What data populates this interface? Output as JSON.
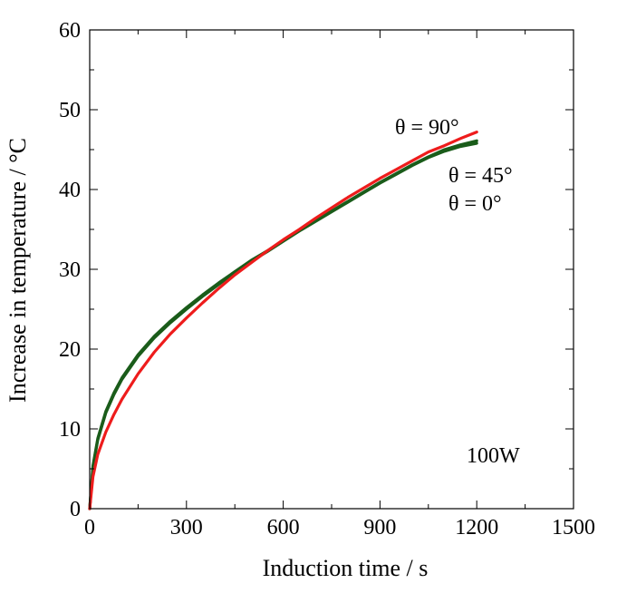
{
  "chart_data": {
    "type": "line",
    "title": "",
    "xlabel": "Induction time / s",
    "ylabel": "Increase in temperature / °C",
    "xlim": [
      0,
      1500
    ],
    "ylim": [
      0,
      60
    ],
    "x_ticks": [
      0,
      300,
      600,
      900,
      1200,
      1500
    ],
    "y_ticks": [
      0,
      10,
      20,
      30,
      40,
      50,
      60
    ],
    "x_tick_labels": [
      "0",
      "300",
      "600",
      "900",
      "1200",
      "1500"
    ],
    "y_tick_labels": [
      "0",
      "10",
      "20",
      "30",
      "40",
      "50",
      "60"
    ],
    "grid": false,
    "series": [
      {
        "name": "θ = 0°",
        "color": "#1a5c1a",
        "x": [
          0,
          10,
          25,
          50,
          75,
          100,
          150,
          200,
          250,
          300,
          350,
          400,
          450,
          500,
          550,
          600,
          650,
          700,
          750,
          800,
          850,
          900,
          950,
          1000,
          1050,
          1100,
          1150,
          1200
        ],
        "y": [
          0,
          5.2,
          8.6,
          12.0,
          14.3,
          16.2,
          19.1,
          21.4,
          23.3,
          25.0,
          26.6,
          28.1,
          29.6,
          31.0,
          32.2,
          33.5,
          34.8,
          36.0,
          37.2,
          38.4,
          39.6,
          40.8,
          41.9,
          43.0,
          44.0,
          44.8,
          45.4,
          45.8
        ]
      },
      {
        "name": "θ = 45°",
        "color": "#1a5c1a",
        "x": [
          0,
          10,
          25,
          50,
          75,
          100,
          150,
          200,
          250,
          300,
          350,
          400,
          450,
          500,
          550,
          600,
          650,
          700,
          750,
          800,
          850,
          900,
          950,
          1000,
          1050,
          1100,
          1150,
          1200
        ],
        "y": [
          0,
          5.4,
          8.8,
          12.2,
          14.5,
          16.4,
          19.3,
          21.6,
          23.5,
          25.2,
          26.8,
          28.3,
          29.7,
          31.1,
          32.3,
          33.6,
          34.9,
          36.1,
          37.3,
          38.5,
          39.7,
          40.9,
          42.0,
          43.1,
          44.1,
          45.0,
          45.6,
          46.1
        ]
      },
      {
        "name": "θ = 90°",
        "color": "#ee1c1c",
        "x": [
          0,
          10,
          25,
          50,
          75,
          100,
          150,
          200,
          250,
          300,
          350,
          400,
          450,
          500,
          550,
          600,
          650,
          700,
          750,
          800,
          850,
          900,
          950,
          1000,
          1050,
          1100,
          1150,
          1200
        ],
        "y": [
          0,
          4.0,
          6.8,
          9.6,
          11.8,
          13.7,
          16.9,
          19.6,
          21.9,
          23.9,
          25.8,
          27.6,
          29.3,
          30.8,
          32.3,
          33.7,
          35.0,
          36.4,
          37.7,
          39.0,
          40.2,
          41.4,
          42.5,
          43.6,
          44.7,
          45.5,
          46.4,
          47.2
        ]
      }
    ],
    "annotations": {
      "label_90": "θ = 90°",
      "label_45": "θ = 45°",
      "label_0": "θ = 0°",
      "power": "100W"
    }
  }
}
